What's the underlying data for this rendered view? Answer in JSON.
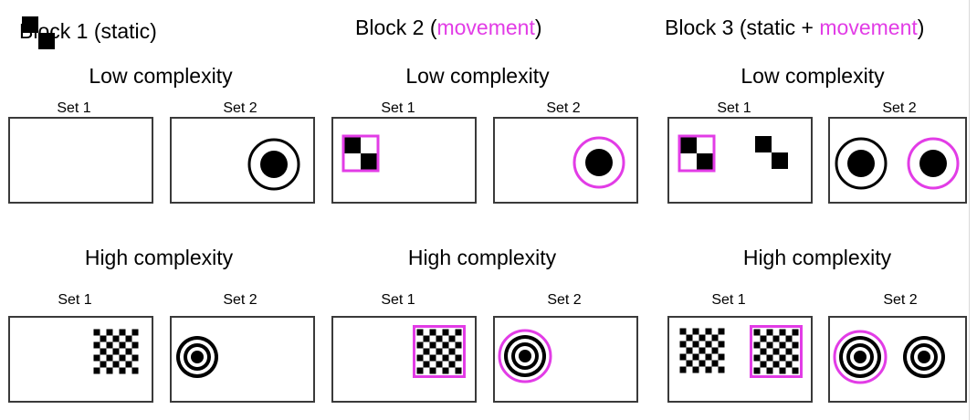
{
  "colors": {
    "movement": "#e23ce6",
    "frame": "#3a3a3a",
    "stimulus": "#000000"
  },
  "blocks": [
    {
      "title_prefix": "Block 1 (",
      "title_static": "static",
      "title_sep": "",
      "title_movement": "",
      "title_suffix": ")",
      "low_label": "Low complexity",
      "high_label": "High complexity",
      "set1_label": "Set 1",
      "set2_label": "Set 2"
    },
    {
      "title_prefix": "Block 2 (",
      "title_static": "",
      "title_sep": "",
      "title_movement": "movement",
      "title_suffix": ")",
      "low_label": "Low complexity",
      "high_label": "High complexity",
      "set1_label": "Set 1",
      "set2_label": "Set 2"
    },
    {
      "title_prefix": "Block 3 (",
      "title_static": "static",
      "title_sep": " + ",
      "title_movement": "movement",
      "title_suffix": ")",
      "low_label": "Low complexity",
      "high_label": "High complexity",
      "set1_label": "Set 1",
      "set2_label": "Set 2"
    }
  ]
}
